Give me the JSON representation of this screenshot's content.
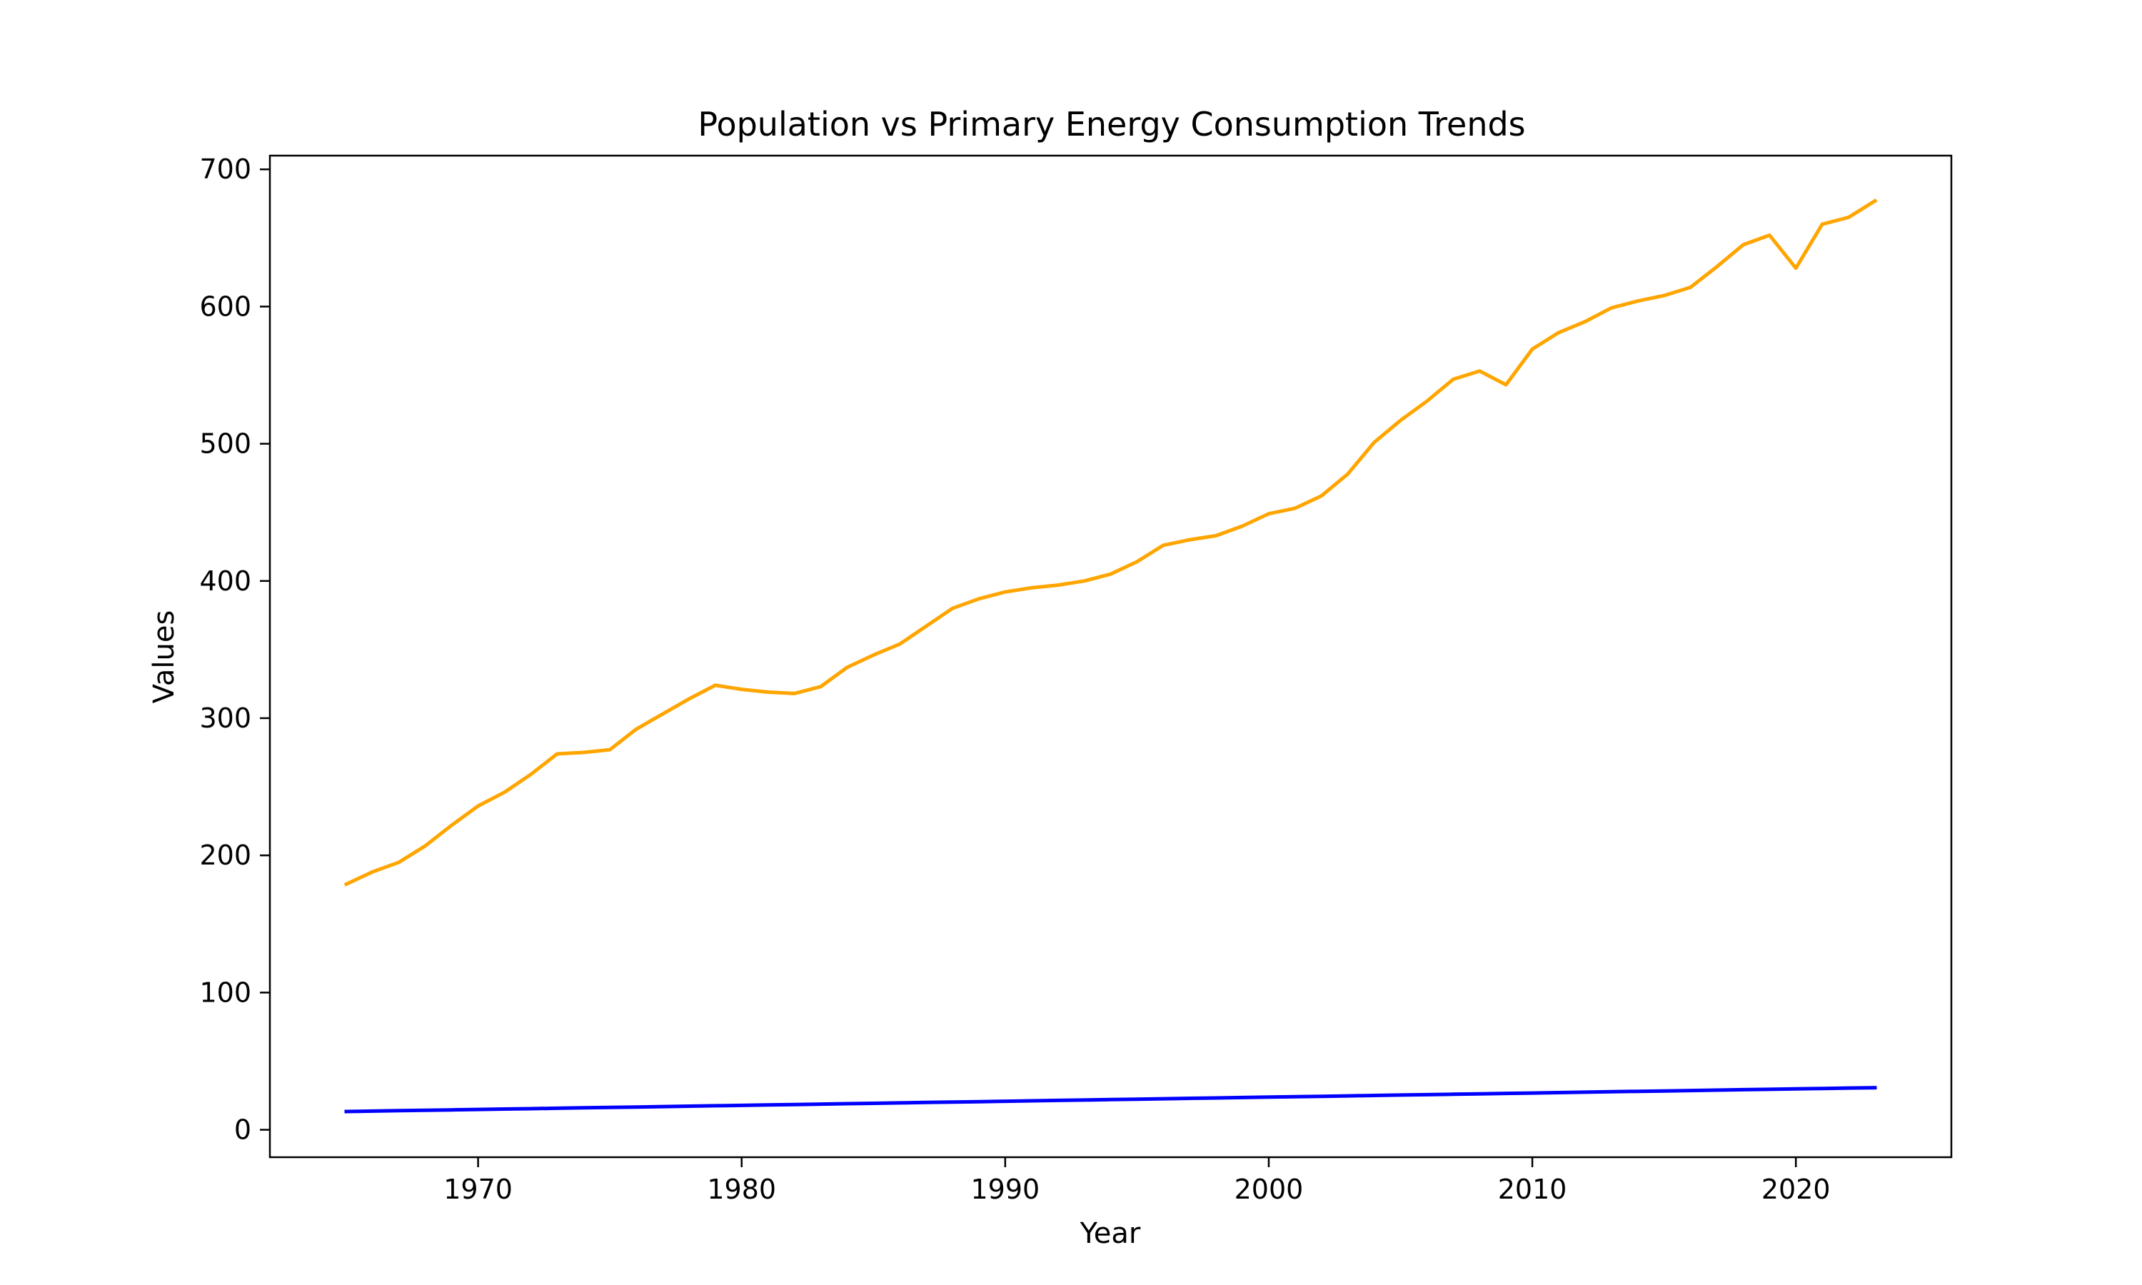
{
  "chart_data": {
    "type": "line",
    "title": "Population vs Primary Energy Consumption Trends",
    "xlabel": "Year",
    "ylabel": "Values",
    "xlim": [
      1962.1,
      2025.9
    ],
    "ylim": [
      -20,
      710
    ],
    "xticks": [
      1970,
      1980,
      1990,
      2000,
      2010,
      2020
    ],
    "yticks": [
      0,
      100,
      200,
      300,
      400,
      500,
      600,
      700
    ],
    "grid": false,
    "legend": "none",
    "x": [
      1965,
      1966,
      1967,
      1968,
      1969,
      1970,
      1971,
      1972,
      1973,
      1974,
      1975,
      1976,
      1977,
      1978,
      1979,
      1980,
      1981,
      1982,
      1983,
      1984,
      1985,
      1986,
      1987,
      1988,
      1989,
      1990,
      1991,
      1992,
      1993,
      1994,
      1995,
      1996,
      1997,
      1998,
      1999,
      2000,
      2001,
      2002,
      2003,
      2004,
      2005,
      2006,
      2007,
      2008,
      2009,
      2010,
      2011,
      2012,
      2013,
      2014,
      2015,
      2016,
      2017,
      2018,
      2019,
      2020,
      2021,
      2022,
      2023
    ],
    "series": [
      {
        "color": "#ffa500",
        "values": [
          179,
          188,
          195,
          207,
          222,
          236,
          246,
          259,
          274,
          275,
          277,
          292,
          303,
          314,
          324,
          321,
          319,
          318,
          323,
          337,
          346,
          354,
          367,
          380,
          387,
          392,
          395,
          397,
          400,
          405,
          414,
          426,
          430,
          433,
          440,
          449,
          453,
          462,
          478,
          501,
          517,
          531,
          547,
          553,
          543,
          569,
          581,
          589,
          599,
          604,
          608,
          614,
          629,
          645,
          652,
          628,
          660,
          665,
          677
        ]
      },
      {
        "color": "#0000ff",
        "values": [
          13.3,
          13.6,
          13.9,
          14.2,
          14.5,
          14.8,
          15.1,
          15.4,
          15.7,
          16.0,
          16.3,
          16.6,
          16.9,
          17.2,
          17.5,
          17.8,
          18.1,
          18.4,
          18.7,
          19.0,
          19.3,
          19.6,
          19.9,
          20.2,
          20.5,
          20.8,
          21.1,
          21.4,
          21.7,
          22.0,
          22.3,
          22.6,
          22.9,
          23.2,
          23.5,
          23.8,
          24.1,
          24.4,
          24.7,
          25.0,
          25.3,
          25.6,
          25.9,
          26.2,
          26.5,
          26.8,
          27.1,
          27.4,
          27.7,
          28.0,
          28.3,
          28.6,
          28.9,
          29.2,
          29.5,
          29.8,
          30.1,
          30.4,
          30.7
        ]
      }
    ]
  }
}
